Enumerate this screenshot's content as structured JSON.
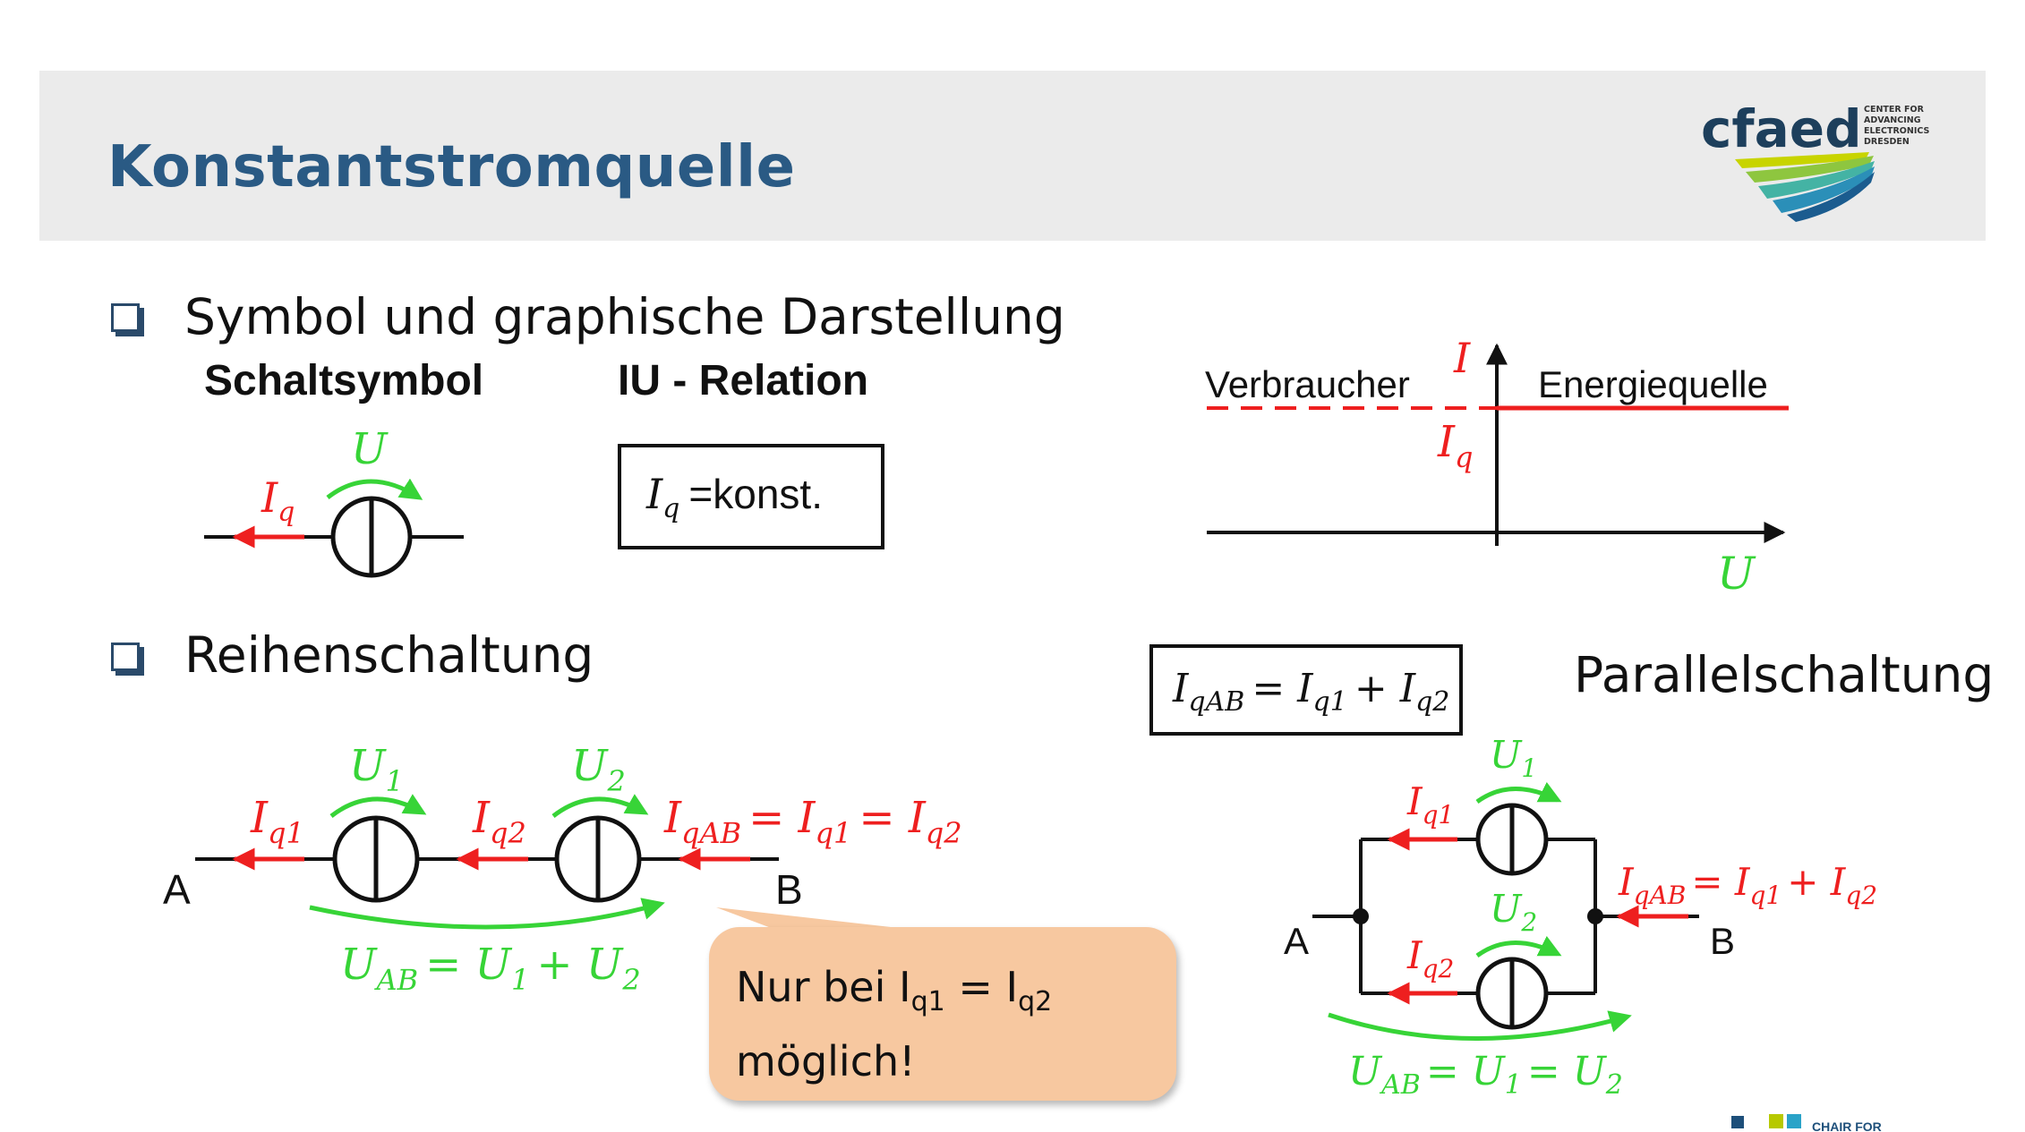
{
  "title": "Konstantstromquelle",
  "logo": {
    "brand": "cfaed",
    "subtitle_lines": [
      "CENTER FOR",
      "ADVANCING",
      "ELECTRONICS",
      "DRESDEN"
    ]
  },
  "footer_logo_text": "CHAIR FOR",
  "bullets": [
    {
      "label": "Symbol und graphische Darstellung"
    },
    {
      "label": "Reihenschaltung"
    }
  ],
  "section1": {
    "schaltsymbol_heading": "Schaltsymbol",
    "iu_heading": "IU - Relation",
    "current_label": "I",
    "current_sub": "q",
    "voltage_label": "U",
    "formula": {
      "var": "I",
      "sub": "q",
      "rest": "=konst."
    }
  },
  "iu_graph": {
    "left_label": "Verbraucher",
    "right_label": "Energiequelle",
    "y_axis": "I",
    "x_axis": "U",
    "level_var": "I",
    "level_sub": "q"
  },
  "series": {
    "U1": {
      "var": "U",
      "sub": "1"
    },
    "U2": {
      "var": "U",
      "sub": "2"
    },
    "Iq1": {
      "var": "I",
      "sub": "q1"
    },
    "Iq2": {
      "var": "I",
      "sub": "q2"
    },
    "IqAB": {
      "var": "I",
      "sub": "qAB"
    },
    "eq_rest_1": "= I",
    "eq_sub_1": "q1",
    "eq_rest_2": "= I",
    "eq_sub_2": "q2",
    "node_a": "A",
    "node_b": "B",
    "uab": {
      "var": "U",
      "sub": "AB",
      "rest": "= U",
      "sub2": "1",
      "plus": "+ U",
      "sub3": "2"
    }
  },
  "callout": {
    "prefix": "Nur bei I",
    "sub1": "q1",
    "mid": " = I",
    "sub2": "q2",
    "line2": "möglich!"
  },
  "parallel": {
    "label": "Parallelschaltung",
    "box": {
      "var": "I",
      "sub": "qAB",
      "eq": "= I",
      "sub1": "q1",
      "plus": "+ I",
      "sub2": "q2"
    },
    "U1": {
      "var": "U",
      "sub": "1"
    },
    "U2": {
      "var": "U",
      "sub": "2"
    },
    "Iq1": {
      "var": "I",
      "sub": "q1"
    },
    "Iq2": {
      "var": "I",
      "sub": "q2"
    },
    "IqAB": {
      "var": "I",
      "sub": "qAB",
      "eq": "= I",
      "sub1": "q1",
      "plus": "+ I",
      "sub2": "q2"
    },
    "node_a": "A",
    "node_b": "B",
    "uab": {
      "var": "U",
      "sub": "AB",
      "eq": "= U",
      "sub1": "1",
      "eq2": "= U",
      "sub2": "2"
    }
  },
  "colors": {
    "title": "#2a5a84",
    "current": "#ee1f1f",
    "voltage": "#37d437",
    "callout": "#f7c8a0",
    "band": "#ebebeb"
  }
}
